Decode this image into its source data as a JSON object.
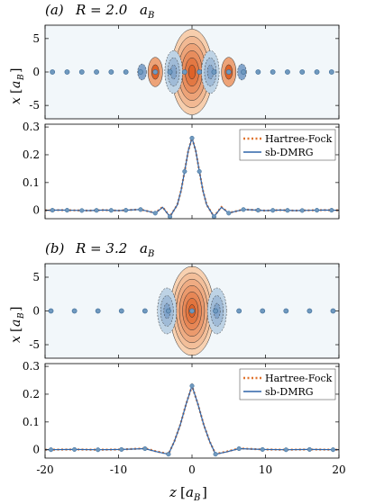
{
  "panel_labels": {
    "a": {
      "letter": "(a)",
      "eq": "R = 2.0",
      "unit": "a",
      "sub": "B"
    },
    "b": {
      "letter": "(b)",
      "eq": "R = 3.2",
      "unit": "a",
      "sub": "B"
    }
  },
  "axes": {
    "contour_ylabel": {
      "var": "x",
      "unit": "a",
      "sub": "B"
    },
    "xlabel": {
      "var": "z",
      "unit": "a",
      "sub": "B"
    }
  },
  "legend": {
    "hf": "Hartree-Fock",
    "dmrg": "sb-DMRG"
  },
  "colors": {
    "hf": "#e0742f",
    "dmrg": "#2f64a8",
    "atom": "#6f99bf",
    "contour_bg": "#f2f7fa",
    "pos_fill": "#f07b2e",
    "neg_fill": "#9fc3d8"
  },
  "chart_data": [
    {
      "id": "a_density",
      "type": "heatmap",
      "title": "(a) R = 2.0 a_B",
      "ylabel": "x [a_B]",
      "xlim": [
        -20,
        20
      ],
      "ylim": [
        -7,
        7
      ],
      "yticks": [
        "5",
        "0",
        "-5"
      ],
      "atom_spacing": 2.0,
      "atoms_z": [
        -19,
        -17,
        -15,
        -13,
        -11,
        -9,
        -7,
        -5,
        -3,
        -1,
        1,
        3,
        5,
        7,
        9,
        11,
        13,
        15,
        17,
        19
      ],
      "lobes": [
        {
          "z": 0,
          "wx": 2.8,
          "hx": 6.4,
          "sign": 1,
          "levels": 6
        },
        {
          "z": -2.5,
          "wx": 1.2,
          "hx": 3.2,
          "sign": -1,
          "levels": 3
        },
        {
          "z": 2.5,
          "wx": 1.2,
          "hx": 3.2,
          "sign": -1,
          "levels": 3
        },
        {
          "z": -5,
          "wx": 1.0,
          "hx": 2.2,
          "sign": 1,
          "levels": 2
        },
        {
          "z": 5,
          "wx": 1.0,
          "hx": 2.2,
          "sign": 1,
          "levels": 2
        },
        {
          "z": -6.8,
          "wx": 0.6,
          "hx": 1.2,
          "sign": -1,
          "levels": 1
        },
        {
          "z": 6.8,
          "wx": 0.6,
          "hx": 1.2,
          "sign": -1,
          "levels": 1
        }
      ]
    },
    {
      "id": "a_profile",
      "type": "line",
      "xlim": [
        -20,
        20
      ],
      "ylim": [
        -0.03,
        0.31
      ],
      "yticks": [
        "0.3",
        "0.2",
        "0.1",
        "0"
      ],
      "xticks": [],
      "series": [
        {
          "name": "Hartree-Fock",
          "x": [
            -20,
            -18,
            -16,
            -14,
            -12,
            -10,
            -8,
            -7,
            -6,
            -5,
            -4,
            -3,
            -2,
            -1.5,
            -1,
            -0.5,
            0,
            0.5,
            1,
            1.5,
            2,
            3,
            4,
            5,
            6,
            7,
            8,
            10,
            12,
            14,
            16,
            18,
            20
          ],
          "y": [
            0.0,
            0.001,
            0.0,
            -0.001,
            0.001,
            -0.001,
            0.002,
            0.003,
            -0.003,
            -0.009,
            0.012,
            -0.022,
            0.02,
            0.07,
            0.14,
            0.215,
            0.26,
            0.215,
            0.14,
            0.07,
            0.02,
            -0.022,
            0.012,
            -0.009,
            -0.003,
            0.003,
            0.002,
            -0.001,
            0.001,
            -0.001,
            0.0,
            0.001,
            0.0
          ]
        },
        {
          "name": "sb-DMRG",
          "x": [
            -20,
            -18,
            -16,
            -14,
            -12,
            -10,
            -8,
            -7,
            -6,
            -5,
            -4,
            -3,
            -2,
            -1.5,
            -1,
            -0.5,
            0,
            0.5,
            1,
            1.5,
            2,
            3,
            4,
            5,
            6,
            7,
            8,
            10,
            12,
            14,
            16,
            18,
            20
          ],
          "y": [
            0.0,
            0.001,
            0.0,
            -0.001,
            0.001,
            -0.001,
            0.002,
            0.003,
            -0.003,
            -0.01,
            0.011,
            -0.023,
            0.02,
            0.07,
            0.14,
            0.215,
            0.26,
            0.215,
            0.14,
            0.07,
            0.02,
            -0.023,
            0.011,
            -0.01,
            -0.003,
            0.003,
            0.002,
            -0.001,
            0.001,
            -0.001,
            0.0,
            0.001,
            0.0
          ]
        }
      ],
      "markers_x": [
        -19,
        -17,
        -15,
        -13,
        -11,
        -9,
        -7,
        -5,
        -3,
        -1,
        0,
        1,
        3,
        5,
        7,
        9,
        11,
        13,
        15,
        17,
        19
      ]
    },
    {
      "id": "b_density",
      "type": "heatmap",
      "title": "(b) R = 3.2 a_B",
      "ylabel": "x [a_B]",
      "xlim": [
        -20,
        20
      ],
      "ylim": [
        -7,
        7
      ],
      "yticks": [
        "5",
        "0",
        "-5"
      ],
      "atom_spacing": 3.2,
      "atoms_z": [
        -19.2,
        -16.0,
        -12.8,
        -9.6,
        -6.4,
        -3.2,
        0,
        3.2,
        6.4,
        9.6,
        12.8,
        16.0,
        19.2
      ],
      "lobes": [
        {
          "z": 0,
          "wx": 3.0,
          "hx": 6.6,
          "sign": 1,
          "levels": 7
        },
        {
          "z": -3.4,
          "wx": 1.3,
          "hx": 3.4,
          "sign": -1,
          "levels": 3
        },
        {
          "z": 3.4,
          "wx": 1.3,
          "hx": 3.4,
          "sign": -1,
          "levels": 3
        }
      ]
    },
    {
      "id": "b_profile",
      "type": "line",
      "xlim": [
        -20,
        20
      ],
      "ylim": [
        -0.03,
        0.31
      ],
      "yticks": [
        "0.3",
        "0.2",
        "0.1",
        "0"
      ],
      "xticks": [
        "-20",
        "-10",
        "0",
        "10",
        "20"
      ],
      "series": [
        {
          "name": "Hartree-Fock",
          "x": [
            -20,
            -16,
            -12.8,
            -9.6,
            -6.4,
            -4.8,
            -3.2,
            -2.4,
            -1.6,
            -0.8,
            0,
            0.8,
            1.6,
            2.4,
            3.2,
            4.8,
            6.4,
            9.6,
            12.8,
            16,
            20
          ],
          "y": [
            0.0,
            0.001,
            0.0,
            0.001,
            0.005,
            -0.006,
            -0.015,
            0.03,
            0.09,
            0.165,
            0.23,
            0.165,
            0.09,
            0.03,
            -0.015,
            -0.006,
            0.005,
            0.001,
            0.0,
            0.001,
            0.0
          ]
        },
        {
          "name": "sb-DMRG",
          "x": [
            -20,
            -16,
            -12.8,
            -9.6,
            -6.4,
            -4.8,
            -3.2,
            -2.4,
            -1.6,
            -0.8,
            0,
            0.8,
            1.6,
            2.4,
            3.2,
            4.8,
            6.4,
            9.6,
            12.8,
            16,
            20
          ],
          "y": [
            0.0,
            0.001,
            0.0,
            0.001,
            0.004,
            -0.007,
            -0.016,
            0.03,
            0.09,
            0.165,
            0.23,
            0.165,
            0.09,
            0.03,
            -0.016,
            -0.007,
            0.004,
            0.001,
            0.0,
            0.001,
            0.0
          ]
        }
      ],
      "markers_x": [
        -19.2,
        -16.0,
        -12.8,
        -9.6,
        -6.4,
        -3.2,
        0,
        3.2,
        6.4,
        9.6,
        12.8,
        16.0,
        19.2
      ]
    }
  ]
}
